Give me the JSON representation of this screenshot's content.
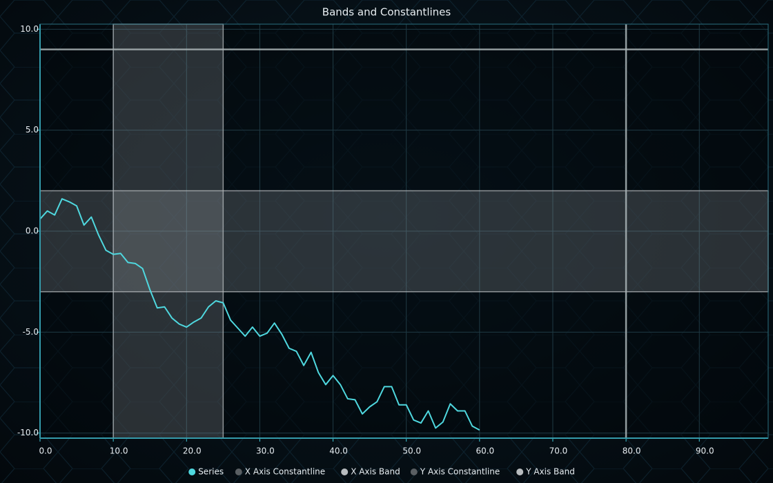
{
  "chart_data": {
    "type": "line",
    "title": "Bands and Constantlines",
    "x": [
      0,
      1,
      2,
      3,
      4,
      5,
      6,
      7,
      8,
      9,
      10,
      11,
      12,
      13,
      14,
      15,
      16,
      17,
      18,
      19,
      20,
      21,
      22,
      23,
      24,
      25,
      26,
      27,
      28,
      29,
      30,
      31,
      32,
      33,
      34,
      35,
      36,
      37,
      38,
      39,
      40,
      41,
      42,
      43,
      44,
      45,
      46,
      47,
      48,
      49,
      50,
      51,
      52,
      53,
      54,
      55,
      56,
      57,
      58,
      59,
      60
    ],
    "series": [
      {
        "name": "Series",
        "color": "#4fd8df",
        "values": [
          0.6,
          1.0,
          0.8,
          1.6,
          1.45,
          1.25,
          0.3,
          0.7,
          -0.2,
          -0.95,
          -1.15,
          -1.1,
          -1.55,
          -1.6,
          -1.85,
          -2.9,
          -3.8,
          -3.75,
          -4.3,
          -4.6,
          -4.75,
          -4.5,
          -4.3,
          -3.75,
          -3.45,
          -3.55,
          -4.4,
          -4.8,
          -5.2,
          -4.75,
          -5.2,
          -5.05,
          -4.55,
          -5.1,
          -5.8,
          -5.95,
          -6.65,
          -6.0,
          -7.0,
          -7.6,
          -7.15,
          -7.6,
          -8.3,
          -8.35,
          -9.05,
          -8.7,
          -8.45,
          -7.7,
          -7.7,
          -8.6,
          -8.6,
          -9.35,
          -9.5,
          -8.9,
          -9.75,
          -9.45,
          -8.55,
          -8.9,
          -8.9,
          -9.65,
          -9.85
        ]
      }
    ],
    "x_constant_line": {
      "name": "X Axis Constantline",
      "color": "#5a5f63",
      "value": 80
    },
    "x_band": {
      "name": "X Axis Band",
      "color": "#b8bcbf",
      "range": [
        10,
        25
      ]
    },
    "y_constant_line": {
      "name": "Y Axis Constantline",
      "color": "#5a5f63",
      "value": 9
    },
    "y_band": {
      "name": "Y Axis Band",
      "color": "#b8bcbf",
      "range": [
        -3,
        2
      ]
    },
    "xlim": [
      0,
      99.4
    ],
    "ylim": [
      -10.25,
      10.25
    ],
    "xticks": [
      {
        "value": 0,
        "label": "0.0"
      },
      {
        "value": 10,
        "label": "10.0"
      },
      {
        "value": 20,
        "label": "20.0"
      },
      {
        "value": 30,
        "label": "30.0"
      },
      {
        "value": 40,
        "label": "40.0"
      },
      {
        "value": 50,
        "label": "50.0"
      },
      {
        "value": 60,
        "label": "60.0"
      },
      {
        "value": 70,
        "label": "70.0"
      },
      {
        "value": 80,
        "label": "80.0"
      },
      {
        "value": 90,
        "label": "90.0"
      }
    ],
    "yticks": [
      {
        "value": -10,
        "label": "-10.0"
      },
      {
        "value": -5,
        "label": "-5.0"
      },
      {
        "value": 0,
        "label": "0.0"
      },
      {
        "value": 5,
        "label": "5.0"
      },
      {
        "value": 10,
        "label": "10.0"
      }
    ],
    "grid": true,
    "legend": "bottom"
  }
}
